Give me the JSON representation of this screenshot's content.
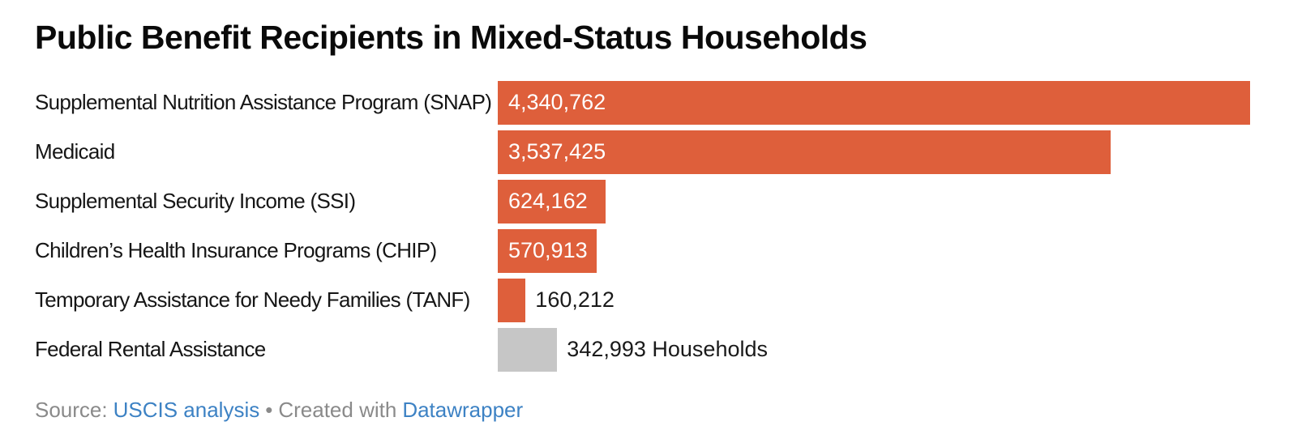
{
  "title": "Public Benefit Recipients in Mixed-Status Households",
  "chart_data": {
    "type": "bar",
    "orientation": "horizontal",
    "title": "Public Benefit Recipients in Mixed-Status Households",
    "categories": [
      "Supplemental Nutrition Assistance Program (SNAP)",
      "Medicaid",
      "Supplemental Security Income (SSI)",
      "Children’s Health Insurance Programs (CHIP)",
      "Temporary Assistance for Needy Families (TANF)",
      "Federal Rental Assistance"
    ],
    "values": [
      4340762,
      3537425,
      624162,
      570913,
      160212,
      342993
    ],
    "value_labels": [
      "4,340,762",
      "3,537,425",
      "624,162",
      "570,913",
      "160,212",
      "342,993 Households"
    ],
    "bar_colors": [
      "#de5f3b",
      "#de5f3b",
      "#de5f3b",
      "#de5f3b",
      "#de5f3b",
      "#c6c6c6"
    ],
    "xlim": [
      0,
      4340762
    ],
    "grid": false,
    "legend": false,
    "xlabel": "",
    "ylabel": ""
  },
  "footer": {
    "source_prefix": "Source:",
    "source_link": "USCIS analysis",
    "separator": "•",
    "created_with": "Created with",
    "tool_link": "Datawrapper"
  },
  "colors": {
    "bar_orange": "#de5f3b",
    "bar_gray": "#c6c6c6",
    "link_blue": "#3d82c4",
    "footer_gray": "#8a8a8a",
    "title_text": "#0a0a0a",
    "label_text": "#161616",
    "value_inside_text": "#ffffff",
    "value_outside_text": "#1a1a1a",
    "background": "#ffffff"
  }
}
